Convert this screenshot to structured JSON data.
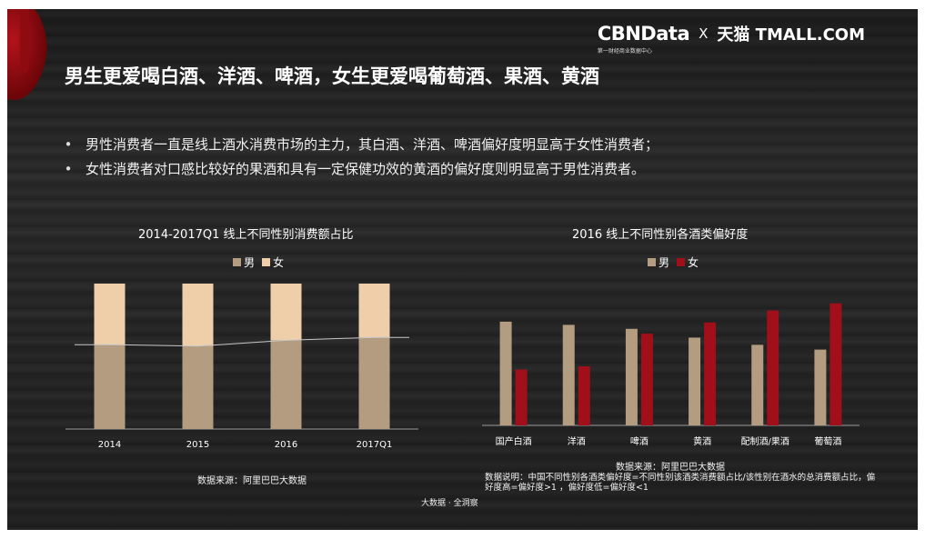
{
  "brand": {
    "cbn": "CBNData",
    "cbn_sub": "第一财经商业数据中心",
    "x": "X",
    "tmall": "天猫 TMALL.COM"
  },
  "headline": "男生更爱喝白酒、洋酒、啤酒，女生更爱喝葡萄酒、果酒、黄酒",
  "bullets": [
    "男性消费者一直是线上酒水消费市场的主力，其白酒、洋酒、啤酒偏好度明显高于女性消费者；",
    "女性消费者对口感比较好的果酒和具有一定保健功效的黄酒的偏好度则明显高于男性消费者。"
  ],
  "colors": {
    "male": "#b39c7f",
    "female": "#efcfaa",
    "female_pref": "#a00f1a",
    "axis": "#9a9a9a",
    "trend": "#c8c8c8"
  },
  "chart_data": [
    {
      "type": "bar",
      "stacked": true,
      "title": "2014-2017Q1 线上不同性别消费额占比",
      "categories": [
        "2014",
        "2015",
        "2016",
        "2017Q1"
      ],
      "series": [
        {
          "name": "男",
          "values": [
            0.58,
            0.57,
            0.61,
            0.63
          ]
        },
        {
          "name": "女",
          "values": [
            0.42,
            0.43,
            0.39,
            0.37
          ]
        }
      ],
      "ylim": [
        0,
        1
      ],
      "legend": "top"
    },
    {
      "type": "bar",
      "title": "2016 线上不同性别各酒类偏好度",
      "categories": [
        "国产白酒",
        "洋酒",
        "啤酒",
        "黄酒",
        "配制酒/果酒",
        "葡萄酒"
      ],
      "series": [
        {
          "name": "男",
          "values": [
            1.3,
            1.26,
            1.21,
            1.1,
            1.01,
            0.95
          ]
        },
        {
          "name": "女",
          "values": [
            0.7,
            0.74,
            1.15,
            1.29,
            1.44,
            1.53
          ]
        }
      ],
      "ylim": [
        0,
        1.8
      ],
      "legend": "top"
    }
  ],
  "source_left": "数据来源：阿里巴巴大数据",
  "source_right": "数据来源：阿里巴巴大数据",
  "note": "数据说明：中国不同性别各酒类偏好度=不同性别该酒类消费额占比/该性别在酒水的总消费额占比，偏好度高=偏好度>1 ，偏好度低=偏好度<1",
  "footer": "大数据 · 全洞察"
}
